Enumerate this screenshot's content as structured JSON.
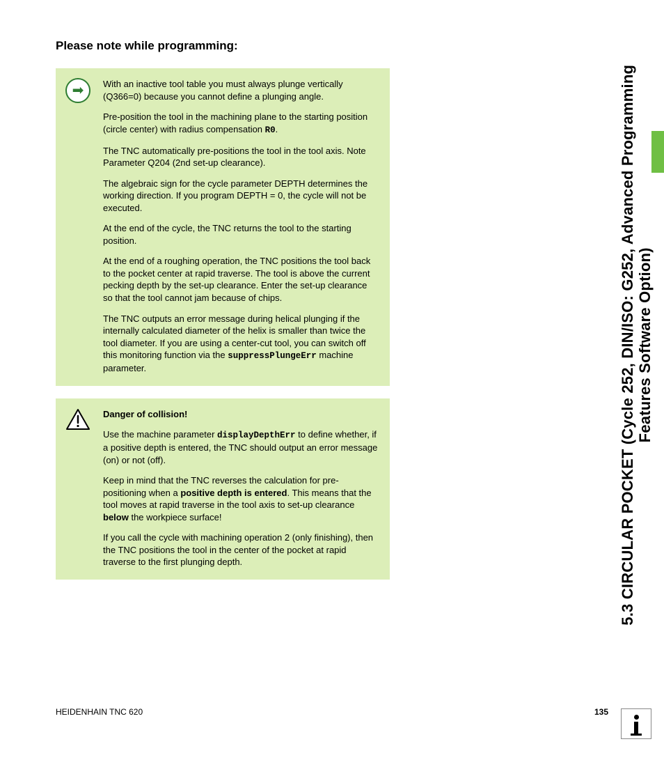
{
  "heading": "Please note while programming:",
  "note1": {
    "icon_glyph": "➡",
    "paragraphs": [
      {
        "segments": [
          {
            "t": "With an inactive tool table you must always plunge vertically (Q366=0) because you cannot define a plunging angle."
          }
        ]
      },
      {
        "segments": [
          {
            "t": "Pre-position the tool in the machining plane to the starting position (circle center) with radius compensation "
          },
          {
            "t": "R0",
            "cls": "mono"
          },
          {
            "t": "."
          }
        ]
      },
      {
        "segments": [
          {
            "t": "The TNC automatically pre-positions the tool in the tool axis. Note Parameter Q204 (2nd set-up clearance)."
          }
        ]
      },
      {
        "segments": [
          {
            "t": "The algebraic sign for the cycle parameter DEPTH determines the working direction. If you program DEPTH = 0, the cycle will not be executed."
          }
        ]
      },
      {
        "segments": [
          {
            "t": "At the end of the cycle, the TNC returns the tool to the starting position."
          }
        ]
      },
      {
        "segments": [
          {
            "t": "At the end of a roughing operation, the TNC positions the tool back to the pocket center at rapid traverse. The tool is above the current pecking depth by the set-up clearance. Enter the set-up clearance so that the tool cannot jam because of chips."
          }
        ]
      },
      {
        "segments": [
          {
            "t": "The TNC outputs an error message during helical plunging if the internally calculated diameter of the helix is smaller than twice the tool diameter. If you are using a center-cut tool, you can switch off this monitoring function via the "
          },
          {
            "t": "suppressPlungeErr",
            "cls": "mono"
          },
          {
            "t": " machine parameter."
          }
        ]
      }
    ]
  },
  "note2": {
    "danger_title": "Danger of collision!",
    "paragraphs": [
      {
        "segments": [
          {
            "t": "Use the machine parameter "
          },
          {
            "t": "displayDepthErr",
            "cls": "mono"
          },
          {
            "t": " to define whether, if a positive depth is entered, the TNC should output an error message (on) or not (off)."
          }
        ]
      },
      {
        "segments": [
          {
            "t": "Keep in mind that the TNC reverses the calculation for pre-positioning when a "
          },
          {
            "t": "positive depth is entered",
            "cls": "bold"
          },
          {
            "t": ". This means that the tool moves at rapid traverse in the tool axis to set-up clearance "
          },
          {
            "t": "below",
            "cls": "bold"
          },
          {
            "t": " the workpiece surface!"
          }
        ]
      },
      {
        "segments": [
          {
            "t": "If you call the cycle with machining operation 2 (only finishing), then the TNC positions the tool in the center of the pocket at rapid traverse to the first plunging depth."
          }
        ]
      }
    ]
  },
  "side_tab": {
    "line1": "5.3 CIRCULAR POCKET (Cycle 252, DIN/ISO: G252, Advanced Programming",
    "line2": "Features Software Option)"
  },
  "footer": {
    "left": "HEIDENHAIN TNC 620",
    "page_number": "135"
  },
  "colors": {
    "note_bg": "#dceeb8",
    "accent_green": "#6fbf44",
    "icon_green": "#2e7d32"
  }
}
